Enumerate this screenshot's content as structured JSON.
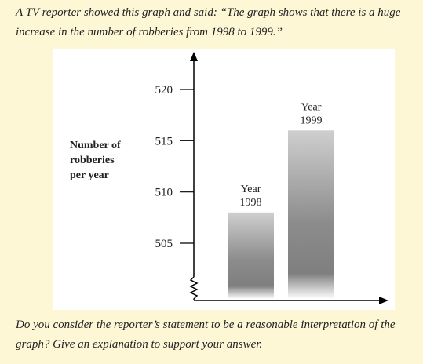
{
  "intro_text": "A TV reporter showed this graph and said: “The graph shows that there is a huge increase in the number of robberies from 1998 to 1999.”",
  "question_text": "Do you consider the reporter’s statement to be a reasonable interpretation of the graph? Give an explanation to support your answer.",
  "chart_data": {
    "type": "bar",
    "categories": [
      "Year 1998",
      "Year 1999"
    ],
    "category_lines": [
      [
        "Year",
        "1998"
      ],
      [
        "Year",
        "1999"
      ]
    ],
    "values": [
      508,
      516
    ],
    "ylabel_lines": [
      "Number of",
      "robberies",
      "per year"
    ],
    "yticks": [
      505,
      510,
      515,
      520
    ],
    "ylim": [
      502,
      522
    ],
    "axis_break": true,
    "grid": false,
    "colors": {
      "bar_light": "#c9c9c9",
      "bar_dark": "#7f7f7f",
      "axis": "#000000"
    }
  }
}
